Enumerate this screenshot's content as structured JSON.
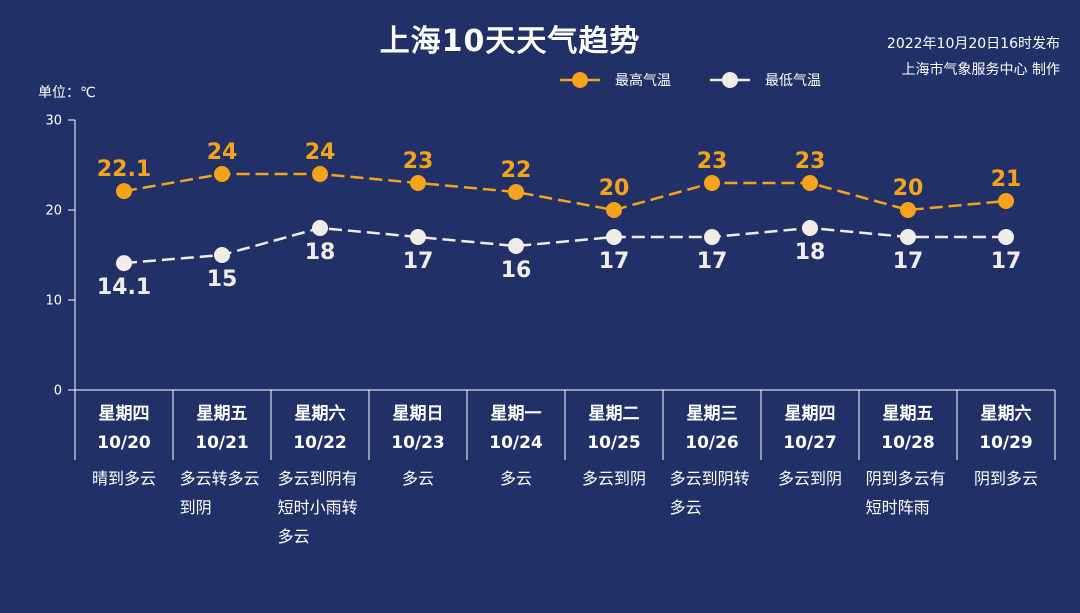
{
  "header": {
    "published": "2022年10月20日16时发布",
    "producer": "上海市气象服务中心 制作"
  },
  "colors": {
    "background": "#223068",
    "axis": "#ffffff"
  },
  "chart_data": {
    "type": "line",
    "title": "上海10天天气趋势",
    "xlabel": "",
    "ylabel": "单位：℃",
    "ylim": [
      0,
      30
    ],
    "yticks": [
      0,
      10,
      20,
      30
    ],
    "grid": false,
    "legend_position": "top",
    "categories": [
      "10/20",
      "10/21",
      "10/22",
      "10/23",
      "10/24",
      "10/25",
      "10/26",
      "10/27",
      "10/28",
      "10/29"
    ],
    "weekdays": [
      "星期四",
      "星期五",
      "星期六",
      "星期日",
      "星期一",
      "星期二",
      "星期三",
      "星期四",
      "星期五",
      "星期六"
    ],
    "weather": [
      "晴到多云",
      "多云转多云到阴",
      "多云到阴有短时小雨转多云",
      "多云",
      "多云",
      "多云到阴",
      "多云到阴转多云",
      "多云到阴",
      "阴到多云有短时阵雨",
      "阴到多云"
    ],
    "series": [
      {
        "name": "最高气温",
        "color": "#f5a31a",
        "line_style": "dashed",
        "marker": "circle",
        "values": [
          22.1,
          24,
          24,
          23,
          22,
          20,
          23,
          23,
          20,
          21
        ]
      },
      {
        "name": "最低气温",
        "color": "#f2ece8",
        "line_style": "dashed",
        "marker": "circle",
        "values": [
          14.1,
          15,
          18,
          17,
          16,
          17,
          17,
          18,
          17,
          17
        ]
      }
    ]
  }
}
